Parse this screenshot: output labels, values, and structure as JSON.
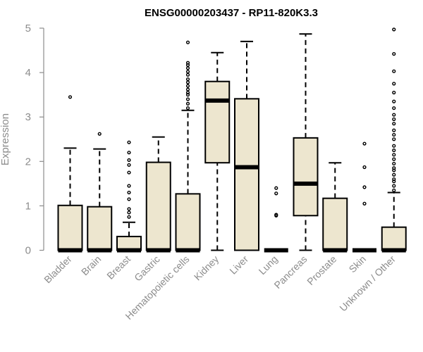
{
  "chart_data": {
    "type": "boxplot",
    "title": "ENSG00000203437 - RP11-820K3.3",
    "xlabel": "",
    "ylabel": "Expression",
    "ylim": [
      0,
      5
    ],
    "yticks": [
      0,
      1,
      2,
      3,
      4,
      5
    ],
    "grid": false,
    "box_fill": "#ede6cf",
    "colors": {
      "box_fill": "#ede6cf",
      "stroke": "#000000",
      "axis": "#8c8c8c"
    },
    "categories": [
      "Bladder",
      "Brain",
      "Breast",
      "Gastric",
      "Hematopoietic cells",
      "Kidney",
      "Liver",
      "Lung",
      "Pancreas",
      "Prostate",
      "Skin",
      "Unknown / Other"
    ],
    "boxes": [
      {
        "name": "Bladder",
        "min": 0,
        "q1": 0,
        "median": 0,
        "q3": 1.01,
        "max": 2.3,
        "outliers": [
          3.45
        ]
      },
      {
        "name": "Brain",
        "min": 0,
        "q1": 0,
        "median": 0,
        "q3": 0.98,
        "max": 2.28,
        "outliers": [
          2.62
        ]
      },
      {
        "name": "Breast",
        "min": 0,
        "q1": 0,
        "median": 0,
        "q3": 0.31,
        "max": 0.63,
        "outliers": [
          0.75,
          0.85,
          0.93,
          1.15,
          1.3,
          1.45,
          1.75,
          1.92,
          2.03,
          2.2,
          2.43
        ]
      },
      {
        "name": "Gastric",
        "min": 0,
        "q1": 0,
        "median": 0,
        "q3": 1.98,
        "max": 2.55,
        "outliers": []
      },
      {
        "name": "Hematopoietic cells",
        "min": 0,
        "q1": 0,
        "median": 0,
        "q3": 1.27,
        "max": 3.15,
        "outliers": [
          3.2,
          3.3,
          3.4,
          3.5,
          3.55,
          3.62,
          3.7,
          3.78,
          3.85,
          3.95,
          4.02,
          4.1,
          4.17,
          4.22,
          4.68
        ]
      },
      {
        "name": "Kidney",
        "min": 0,
        "q1": 1.97,
        "median": 3.37,
        "q3": 3.8,
        "max": 4.45,
        "outliers": []
      },
      {
        "name": "Liver",
        "min": 0,
        "q1": 0,
        "median": 1.87,
        "q3": 3.41,
        "max": 4.7,
        "outliers": []
      },
      {
        "name": "Lung",
        "min": 0,
        "q1": 0,
        "median": 0,
        "q3": 0,
        "max": 0,
        "outliers": [
          0.78,
          0.8,
          1.28,
          1.4
        ]
      },
      {
        "name": "Pancreas",
        "min": 0,
        "q1": 0.78,
        "median": 1.5,
        "q3": 2.53,
        "max": 4.87,
        "outliers": []
      },
      {
        "name": "Prostate",
        "min": 0,
        "q1": 0,
        "median": 0,
        "q3": 1.17,
        "max": 1.97,
        "outliers": []
      },
      {
        "name": "Skin",
        "min": 0,
        "q1": 0,
        "median": 0,
        "q3": 0,
        "max": 0,
        "outliers": [
          1.05,
          1.42,
          1.87,
          2.4
        ]
      },
      {
        "name": "Unknown / Other",
        "min": 0,
        "q1": 0,
        "median": 0,
        "q3": 0.52,
        "max": 1.3,
        "outliers": [
          1.35,
          1.45,
          1.55,
          1.6,
          1.7,
          1.8,
          1.85,
          1.95,
          2.05,
          2.15,
          2.25,
          2.35,
          2.5,
          2.6,
          2.7,
          2.85,
          2.95,
          3.05,
          3.2,
          3.35,
          3.55,
          3.75,
          4.03,
          4.42,
          4.97
        ]
      }
    ]
  }
}
